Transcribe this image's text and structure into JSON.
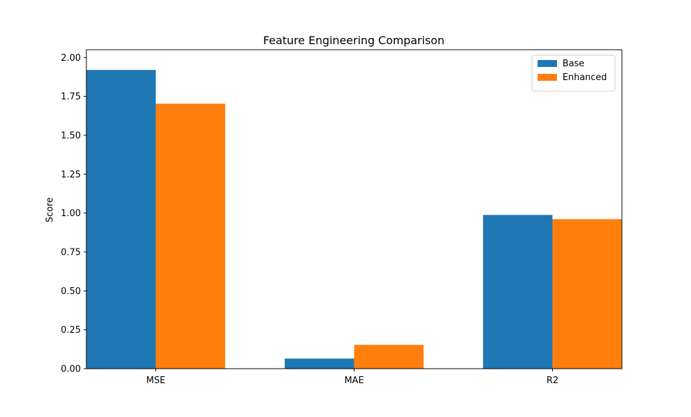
{
  "chart_data": {
    "type": "bar",
    "title": "Feature Engineering Comparison",
    "xlabel": "",
    "ylabel": "Score",
    "categories": [
      "MSE",
      "MAE",
      "R2"
    ],
    "series": [
      {
        "name": "Base",
        "values": [
          1.92,
          0.065,
          0.988
        ],
        "color": "#1f77b4"
      },
      {
        "name": "Enhanced",
        "values": [
          1.703,
          0.153,
          0.961
        ],
        "color": "#ff7f0e"
      }
    ],
    "ylim": [
      0,
      2.0
    ],
    "yticks": [
      "0.00",
      "0.25",
      "0.50",
      "0.75",
      "1.00",
      "1.25",
      "1.50",
      "1.75",
      "2.00"
    ],
    "grid": false,
    "legend_position": "top-right"
  }
}
